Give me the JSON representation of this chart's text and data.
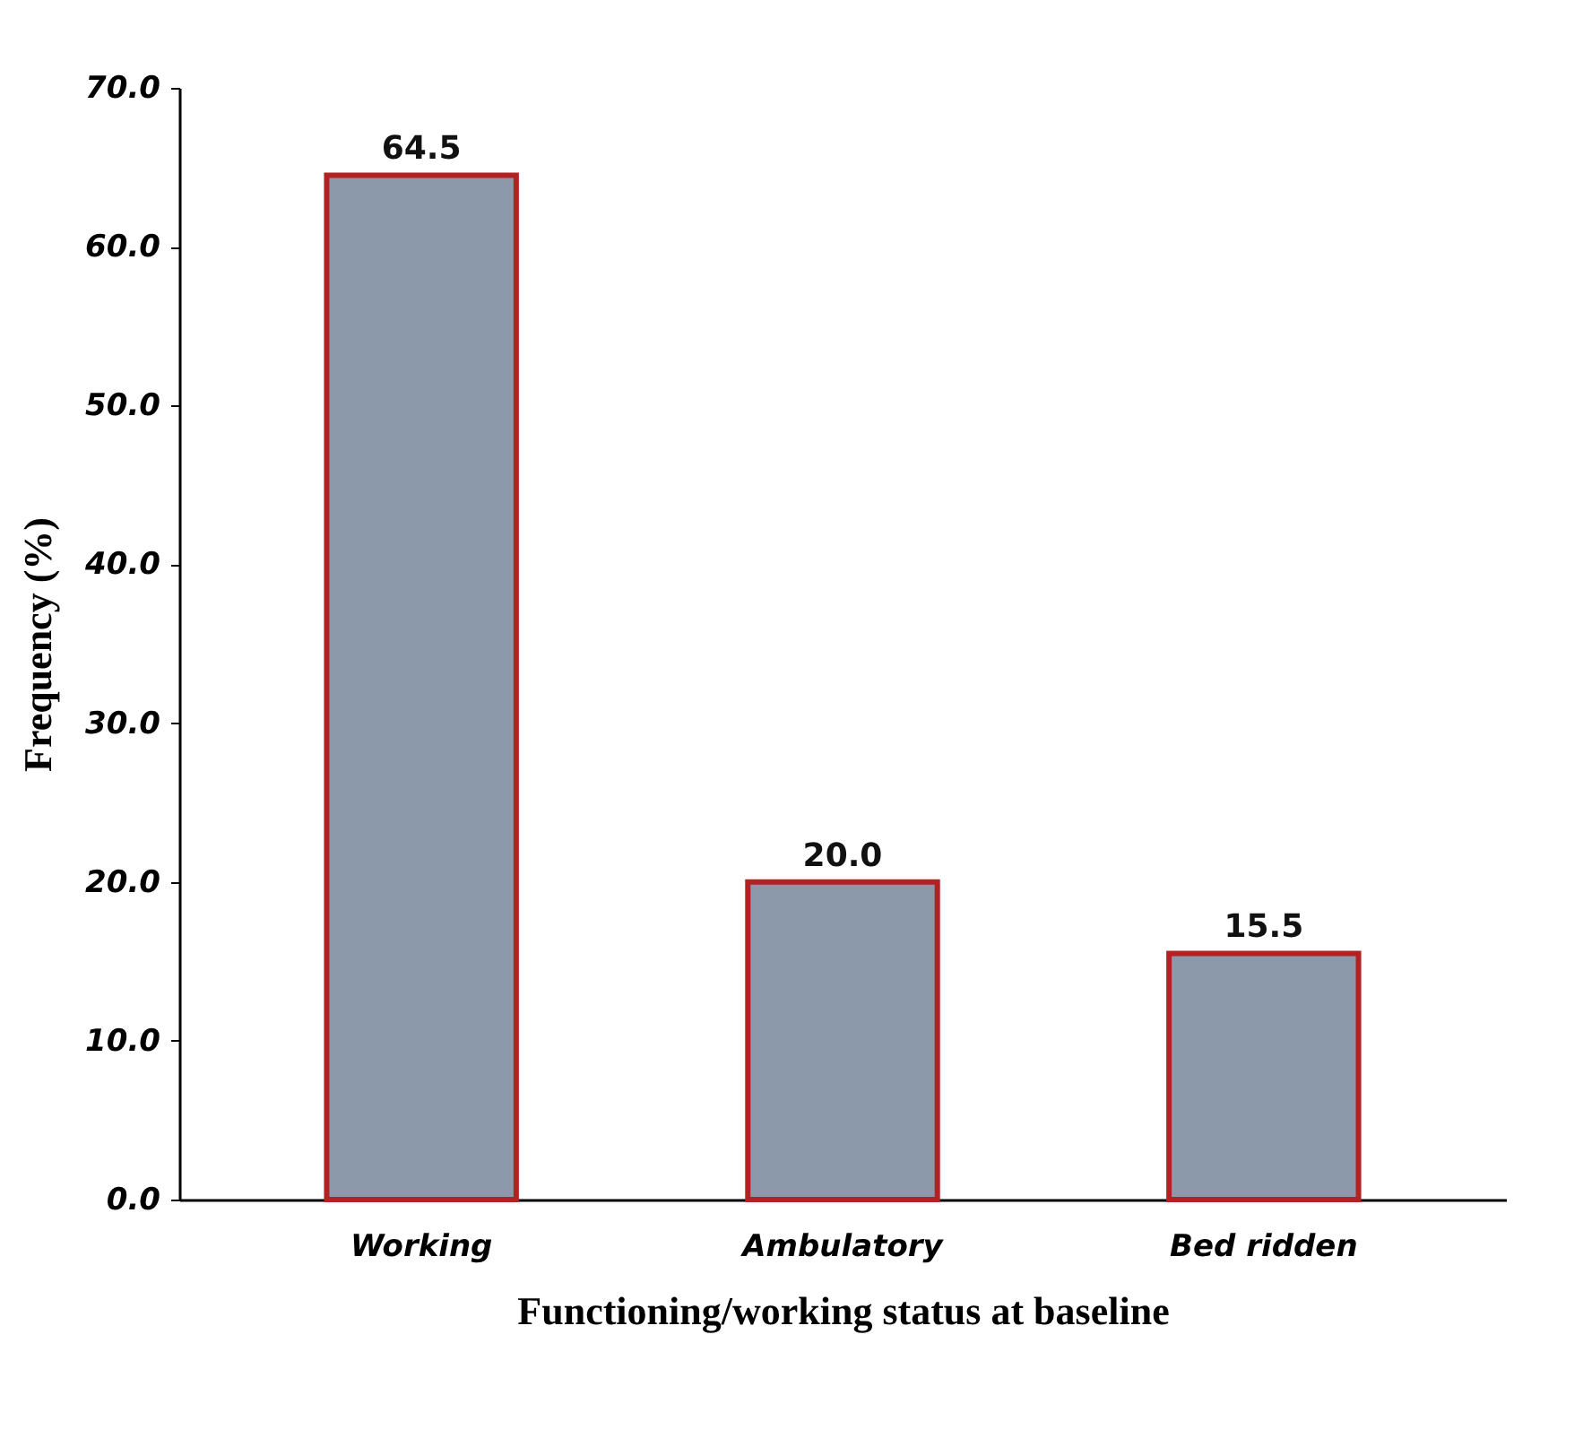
{
  "chart_data": {
    "type": "bar",
    "xlabel": "Functioning/working status at baseline",
    "ylabel": "Frequency (%)",
    "categories": [
      "Working",
      "Ambulatory",
      "Bed ridden"
    ],
    "values": [
      64.5,
      20.0,
      15.5
    ],
    "value_labels": [
      "64.5",
      "20.0",
      "15.5"
    ],
    "color": "#8c99ab",
    "ylim": [
      0,
      70
    ],
    "yticks": [
      {
        "value": 0,
        "label": "0.0"
      },
      {
        "value": 10,
        "label": "10.0"
      },
      {
        "value": 20,
        "label": "20.0"
      },
      {
        "value": 30,
        "label": "30.0"
      },
      {
        "value": 40,
        "label": "40.0"
      },
      {
        "value": 50,
        "label": "50.0"
      },
      {
        "value": 60,
        "label": "60.0"
      },
      {
        "value": 70,
        "label": "70.0"
      }
    ],
    "grid": false
  }
}
